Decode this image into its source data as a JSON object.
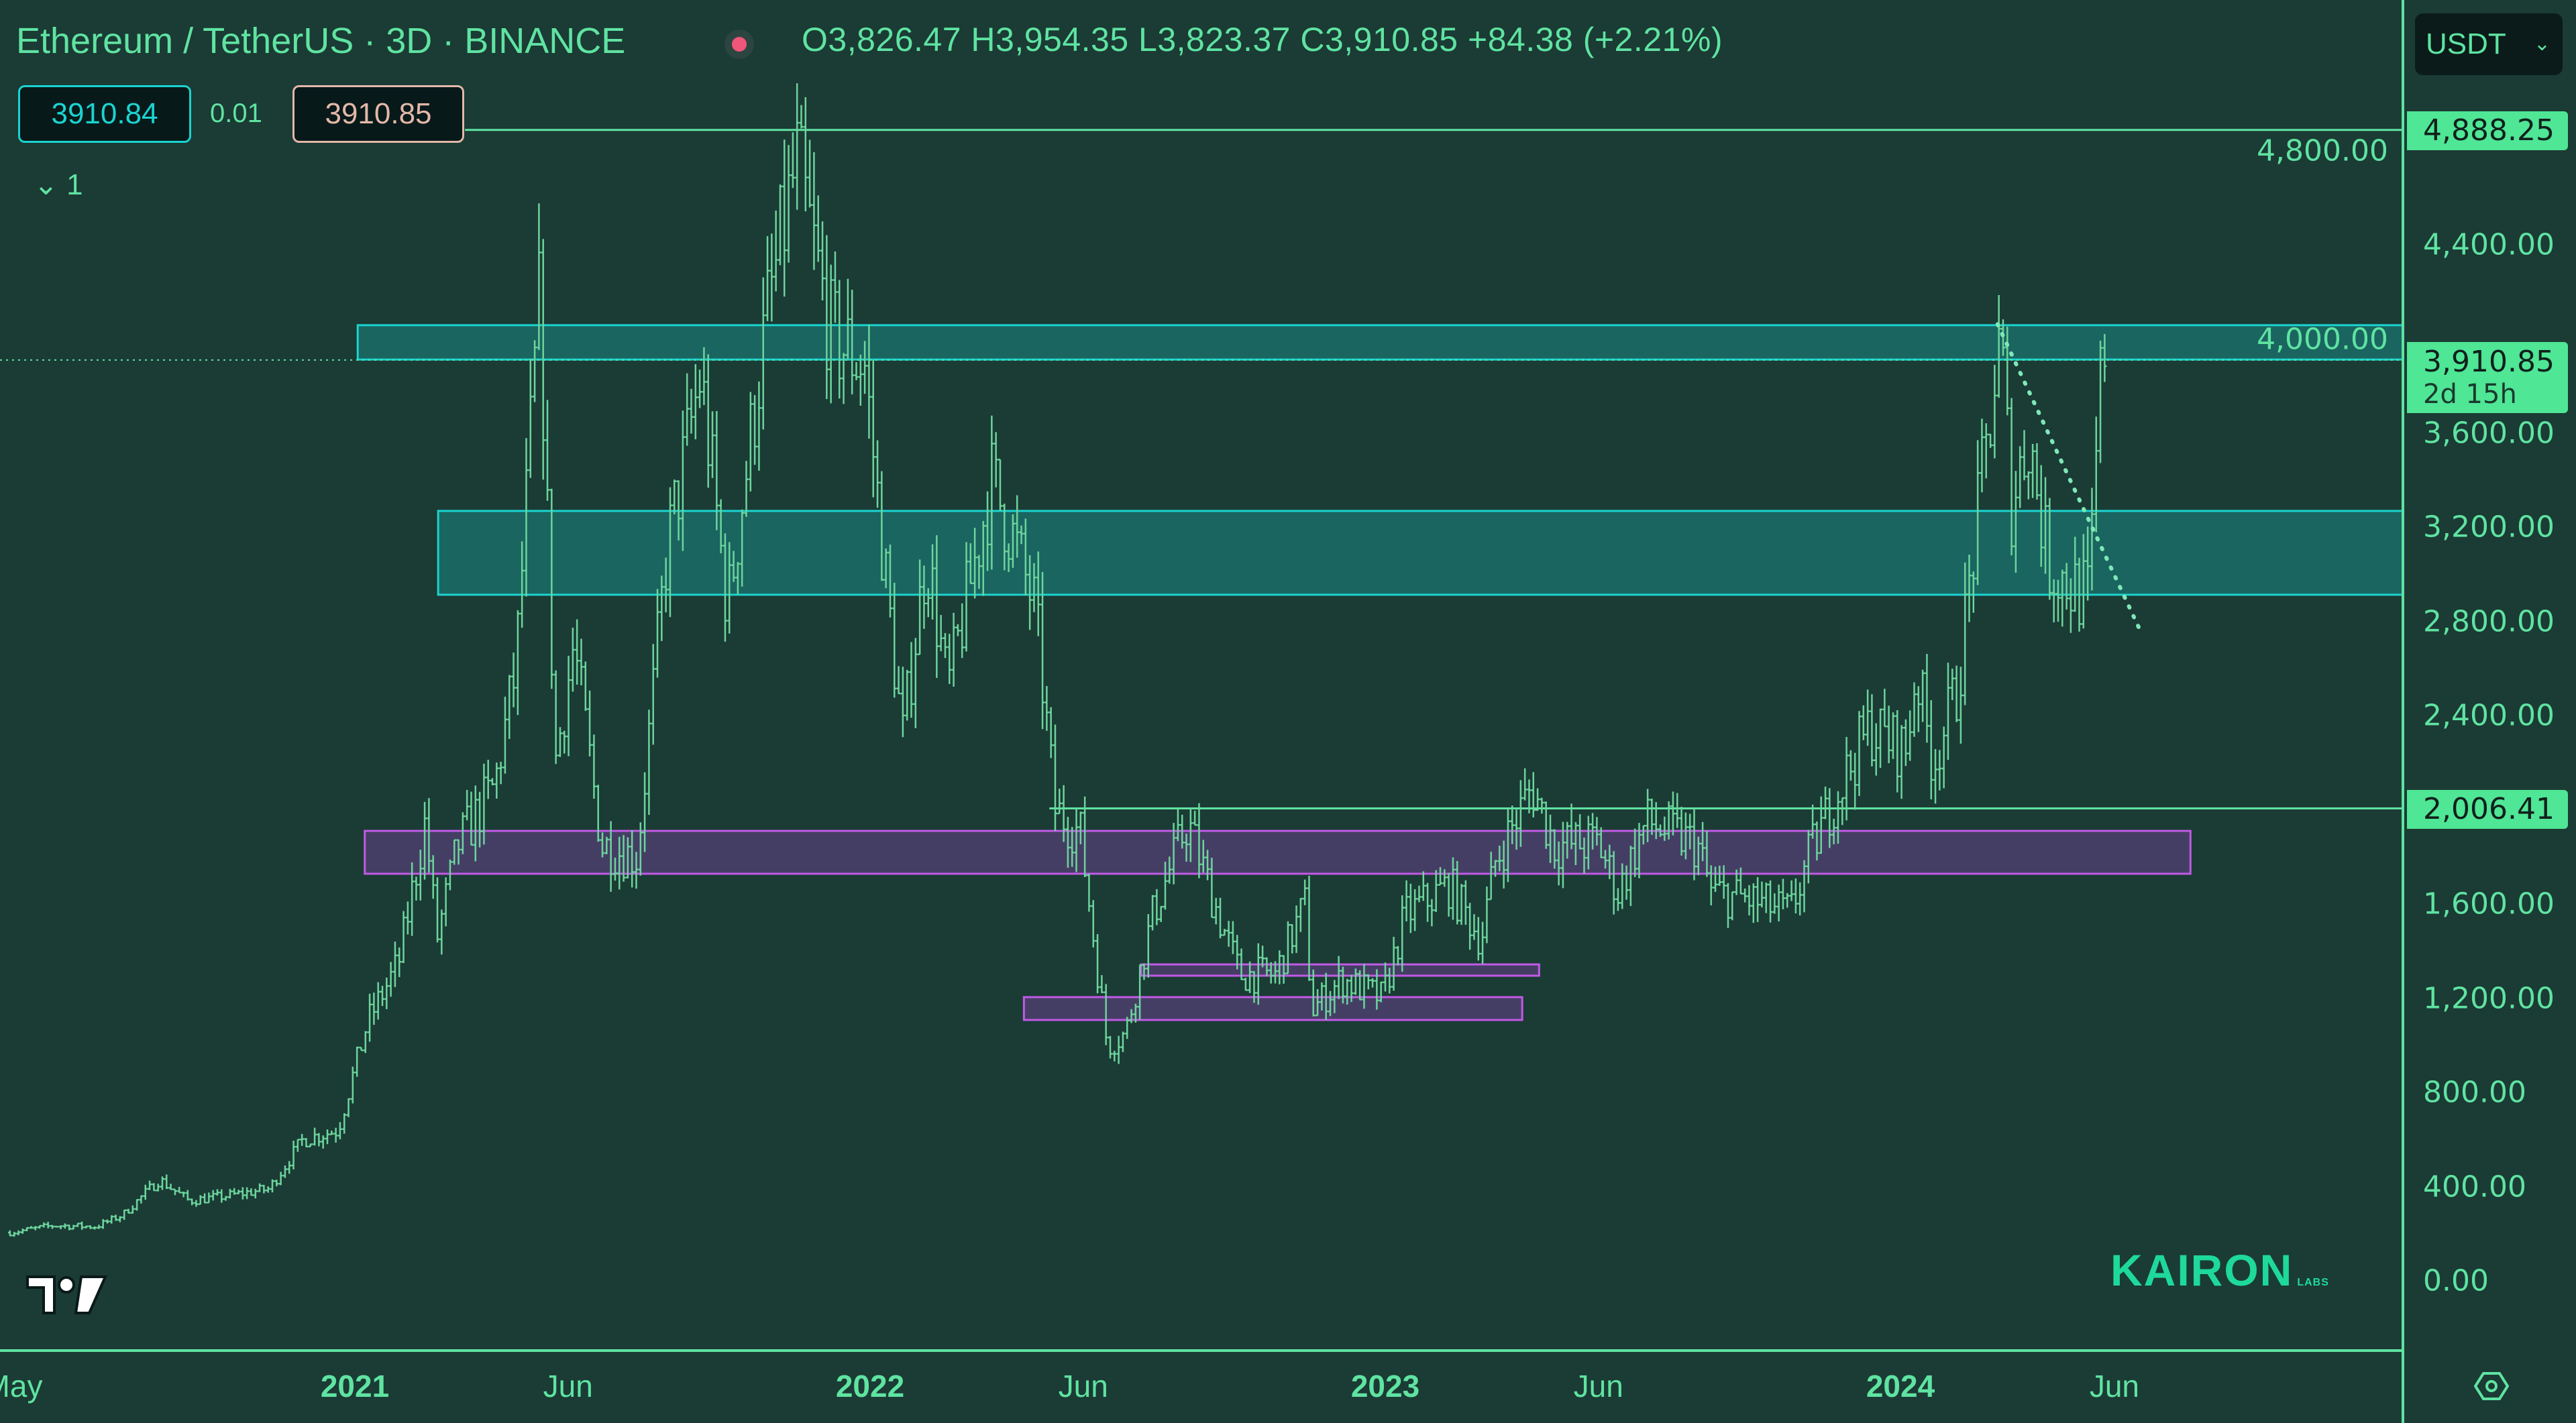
{
  "header": {
    "title": "Ethereum / TetherUS · 3D · BINANCE",
    "ohlc": "O3,826.47 H3,954.35 L3,823.37 C3,910.85 +84.38 (+2.21%)",
    "market_status_icon": "red-dot",
    "bid": "3910.84",
    "spread": "0.01",
    "ask": "3910.85",
    "indicators_toggle": "1"
  },
  "currency_select": {
    "value": "USDT"
  },
  "price_tags": {
    "high": "4,888.25",
    "last": "3,910.85",
    "countdown": "2d 15h",
    "level": "2,006.41"
  },
  "watermark": {
    "brand": "KAIRON",
    "sub": "LABS"
  },
  "colors": {
    "background": "#1b3b35",
    "bars": "#6cd49c",
    "zone_cyan": "#1ad4d0",
    "zone_purple": "#b04fd6",
    "text": "#5fe3a1",
    "tag": "#4fe695"
  },
  "chart_data": {
    "type": "ohlc-bar",
    "symbol": "ETHUSDT",
    "interval": "3D",
    "ylim": [
      0,
      4950
    ],
    "yticks": [
      "0.00",
      "400.00",
      "800.00",
      "1,200.00",
      "1,600.00",
      "2,400.00",
      "2,800.00",
      "3,200.00",
      "3,600.00",
      "4,000.00",
      "4,400.00",
      "4,800.00"
    ],
    "ytick_values": [
      0,
      400,
      800,
      1200,
      1600,
      2400,
      2800,
      3200,
      3600,
      4000,
      4400,
      4800
    ],
    "xticks": [
      {
        "label": "May",
        "date": "2020-05-01",
        "bold": false
      },
      {
        "label": "2021",
        "date": "2021-01-01",
        "bold": true
      },
      {
        "label": "Jun",
        "date": "2021-06-01",
        "bold": false
      },
      {
        "label": "2022",
        "date": "2022-01-01",
        "bold": true
      },
      {
        "label": "Jun",
        "date": "2022-06-01",
        "bold": false
      },
      {
        "label": "2023",
        "date": "2023-01-01",
        "bold": true
      },
      {
        "label": "Jun",
        "date": "2023-06-01",
        "bold": false
      },
      {
        "label": "2024",
        "date": "2024-01-01",
        "bold": true
      },
      {
        "label": "Jun",
        "date": "2024-06-01",
        "bold": false
      }
    ],
    "close_anchors": [
      [
        "2020-05-01",
        205
      ],
      [
        "2020-06-01",
        235
      ],
      [
        "2020-07-01",
        230
      ],
      [
        "2020-07-20",
        280
      ],
      [
        "2020-08-15",
        430
      ],
      [
        "2020-09-05",
        340
      ],
      [
        "2020-10-01",
        360
      ],
      [
        "2020-11-01",
        390
      ],
      [
        "2020-11-25",
        600
      ],
      [
        "2020-12-20",
        640
      ],
      [
        "2021-01-10",
        1100
      ],
      [
        "2021-02-01",
        1350
      ],
      [
        "2021-02-20",
        1950
      ],
      [
        "2021-02-28",
        1450
      ],
      [
        "2021-03-15",
        1850
      ],
      [
        "2021-04-10",
        2100
      ],
      [
        "2021-04-25",
        2600
      ],
      [
        "2021-05-12",
        4200
      ],
      [
        "2021-05-23",
        2200
      ],
      [
        "2021-06-05",
        2700
      ],
      [
        "2021-06-25",
        1850
      ],
      [
        "2021-07-20",
        1800
      ],
      [
        "2021-08-10",
        3100
      ],
      [
        "2021-09-03",
        3850
      ],
      [
        "2021-09-22",
        2850
      ],
      [
        "2021-10-20",
        4100
      ],
      [
        "2021-11-10",
        4750
      ],
      [
        "2021-11-28",
        4200
      ],
      [
        "2021-12-05",
        4000
      ],
      [
        "2021-12-28",
        3900
      ],
      [
        "2022-01-10",
        3100
      ],
      [
        "2022-01-24",
        2300
      ],
      [
        "2022-02-10",
        3100
      ],
      [
        "2022-02-25",
        2500
      ],
      [
        "2022-03-28",
        3400
      ],
      [
        "2022-04-10",
        3200
      ],
      [
        "2022-04-28",
        2850
      ],
      [
        "2022-05-12",
        2000
      ],
      [
        "2022-05-30",
        1900
      ],
      [
        "2022-06-18",
        1000
      ],
      [
        "2022-07-01",
        1050
      ],
      [
        "2022-07-20",
        1550
      ],
      [
        "2022-08-14",
        1950
      ],
      [
        "2022-09-05",
        1550
      ],
      [
        "2022-09-20",
        1300
      ],
      [
        "2022-10-15",
        1300
      ],
      [
        "2022-11-05",
        1600
      ],
      [
        "2022-11-10",
        1150
      ],
      [
        "2022-12-01",
        1280
      ],
      [
        "2022-12-30",
        1200
      ],
      [
        "2023-01-15",
        1550
      ],
      [
        "2023-02-15",
        1680
      ],
      [
        "2023-03-10",
        1450
      ],
      [
        "2023-03-20",
        1780
      ],
      [
        "2023-04-15",
        2100
      ],
      [
        "2023-05-01",
        1850
      ],
      [
        "2023-06-01",
        1860
      ],
      [
        "2023-06-15",
        1650
      ],
      [
        "2023-07-05",
        1950
      ],
      [
        "2023-08-10",
        1850
      ],
      [
        "2023-08-20",
        1650
      ],
      [
        "2023-09-15",
        1620
      ],
      [
        "2023-10-15",
        1560
      ],
      [
        "2023-10-28",
        1800
      ],
      [
        "2023-11-15",
        2050
      ],
      [
        "2023-12-10",
        2350
      ],
      [
        "2024-01-05",
        2250
      ],
      [
        "2024-01-12",
        2600
      ],
      [
        "2024-01-24",
        2200
      ],
      [
        "2024-02-10",
        2500
      ],
      [
        "2024-02-28",
        3400
      ],
      [
        "2024-03-12",
        4000
      ],
      [
        "2024-03-20",
        3300
      ],
      [
        "2024-04-01",
        3600
      ],
      [
        "2024-04-15",
        3050
      ],
      [
        "2024-05-01",
        2950
      ],
      [
        "2024-05-14",
        2900
      ],
      [
        "2024-05-22",
        3800
      ],
      [
        "2024-05-26",
        3910.85
      ]
    ],
    "zones": [
      {
        "kind": "cyan",
        "from": "2021-01-03",
        "to": "chart-end",
        "top": 4059,
        "bottom": 3913
      },
      {
        "kind": "cyan",
        "from": "2021-03-01",
        "to": "chart-end",
        "top": 3270,
        "bottom": 2914
      },
      {
        "kind": "purple",
        "from": "2021-01-08",
        "to": "2024-07-25",
        "top": 1911,
        "bottom": 1729
      },
      {
        "kind": "purple",
        "from": "2022-07-12",
        "to": "2023-04-20",
        "top": 1344,
        "bottom": 1296
      },
      {
        "kind": "purple",
        "from": "2022-04-20",
        "to": "2023-04-08",
        "top": 1205,
        "bottom": 1108
      }
    ],
    "horizontal_lines": [
      {
        "price": 4888.25,
        "from": "2021-03-20",
        "style": "solid"
      },
      {
        "price": 2006.41,
        "from": "2022-05-08",
        "style": "solid"
      },
      {
        "price": 3910.85,
        "from": "chart-start",
        "style": "dotted"
      }
    ],
    "trend_line": {
      "from": [
        "2024-03-10",
        4063
      ],
      "to": [
        "2024-06-20",
        2753
      ],
      "style": "dotted"
    }
  }
}
